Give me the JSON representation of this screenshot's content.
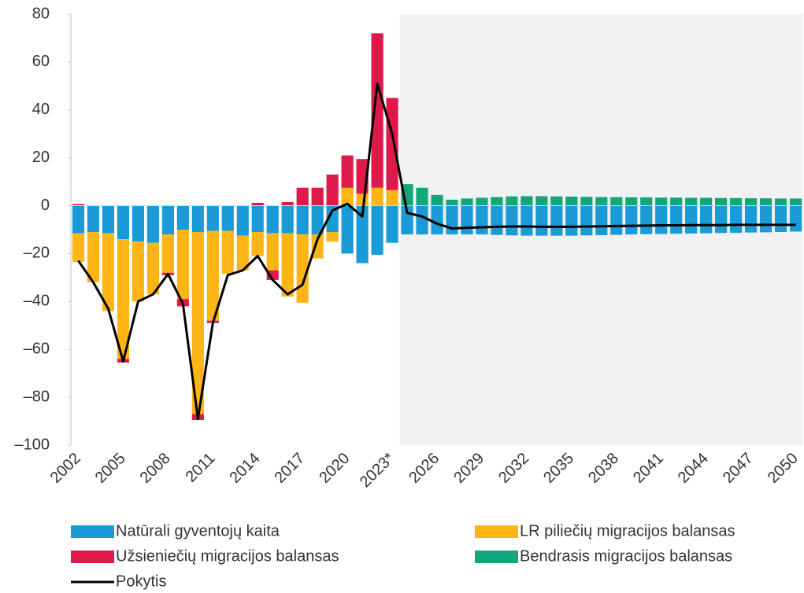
{
  "chart_data": {
    "type": "bar",
    "stacked": true,
    "categories": [
      "2002",
      null,
      null,
      "2005",
      null,
      null,
      "2008",
      null,
      null,
      "2011",
      null,
      null,
      "2014",
      null,
      null,
      "2017",
      null,
      null,
      "2020",
      null,
      null,
      "2023*",
      null,
      null,
      "2026",
      null,
      null,
      "2029",
      null,
      null,
      "2032",
      null,
      null,
      "2035",
      null,
      null,
      "2038",
      null,
      null,
      "2041",
      null,
      null,
      "2044",
      null,
      null,
      "2047",
      null,
      null,
      "2050"
    ],
    "series": [
      {
        "name": "Natūrali gyventojų kaita",
        "color": "#1a9ad6",
        "values": [
          -11.5,
          -11,
          -11.5,
          -14,
          -15,
          -15.5,
          -12,
          -10,
          -11,
          -10.5,
          -10.5,
          -12.5,
          -11,
          -11.5,
          -11.5,
          -12,
          -12,
          -11,
          -20,
          -24,
          -20.5,
          -15.5,
          -12,
          -12,
          -12,
          -12,
          -12,
          -12,
          -12.2,
          -12.4,
          -12.5,
          -12.5,
          -12.5,
          -12.5,
          -12.4,
          -12.3,
          -12.2,
          -12,
          -11.9,
          -11.8,
          -11.7,
          -11.6,
          -11.5,
          -11.4,
          -11.3,
          -11.2,
          -11.1,
          -11,
          -10.8
        ]
      },
      {
        "name": "LR piliečių migracijos balansas",
        "color": "#fdb515",
        "values": [
          -12,
          -21,
          -32.5,
          -50,
          -25,
          -21.5,
          -16,
          -29,
          -76,
          -37.5,
          -18,
          -14.5,
          -10,
          -15.5,
          -26.5,
          -28.5,
          -10,
          -4,
          7.5,
          5,
          7.5,
          6.5,
          null,
          null,
          null,
          null,
          null,
          null,
          null,
          null,
          null,
          null,
          null,
          null,
          null,
          null,
          null,
          null,
          null,
          null,
          null,
          null,
          null,
          null,
          null,
          null,
          null,
          null,
          null
        ]
      },
      {
        "name": "Užsieniečių migracijos balansas",
        "color": "#e0194b",
        "values": [
          0.7,
          0,
          0,
          -1.5,
          0,
          0,
          -1,
          -3,
          -2.5,
          -1,
          0,
          0,
          1.2,
          -4,
          1.5,
          7.5,
          7.5,
          13,
          13.5,
          14.5,
          64.5,
          38.5,
          null,
          null,
          null,
          null,
          null,
          null,
          null,
          null,
          null,
          null,
          null,
          null,
          null,
          null,
          null,
          null,
          null,
          null,
          null,
          null,
          null,
          null,
          null,
          null,
          null,
          null,
          null
        ]
      },
      {
        "name": "Bendrasis migracijos balansas",
        "color": "#13a57b",
        "values": [
          null,
          null,
          null,
          null,
          null,
          null,
          null,
          null,
          null,
          null,
          null,
          null,
          null,
          null,
          null,
          null,
          null,
          null,
          null,
          null,
          null,
          null,
          9,
          7.5,
          4.5,
          2.5,
          3,
          3.3,
          3.6,
          3.9,
          4,
          4,
          3.9,
          3.8,
          3.7,
          3.6,
          3.6,
          3.5,
          3.5,
          3.4,
          3.4,
          3.3,
          3.3,
          3.2,
          3.2,
          3.1,
          3.1,
          3,
          3
        ]
      },
      {
        "name": "Pokytis",
        "type": "line",
        "color": "#000000",
        "values": [
          -23,
          -32,
          -43,
          -65,
          -40,
          -37,
          -28.5,
          -41,
          -89,
          -49,
          -29,
          -27,
          -21,
          -31,
          -37,
          -33,
          -14,
          -2,
          0.8,
          -4.5,
          51,
          30,
          -3,
          -4.5,
          -7.5,
          -9.5,
          -9.2,
          -9,
          -8.8,
          -8.7,
          -8.7,
          -8.8,
          -8.8,
          -8.8,
          -8.7,
          -8.6,
          -8.5,
          -8.4,
          -8.3,
          -8.2,
          -8.2,
          -8.1,
          -8.1,
          -8.1,
          -8,
          -8,
          -8,
          -8,
          -8
        ]
      }
    ],
    "ylim": [
      -100,
      80
    ],
    "yticks": [
      {
        "value": -100,
        "label": "–100"
      },
      {
        "value": -80,
        "label": "–80"
      },
      {
        "value": -60,
        "label": "–60"
      },
      {
        "value": -40,
        "label": "–40"
      },
      {
        "value": -20,
        "label": "–20"
      },
      0,
      20,
      40,
      60,
      80
    ],
    "grid": false,
    "legend": "bottom"
  }
}
